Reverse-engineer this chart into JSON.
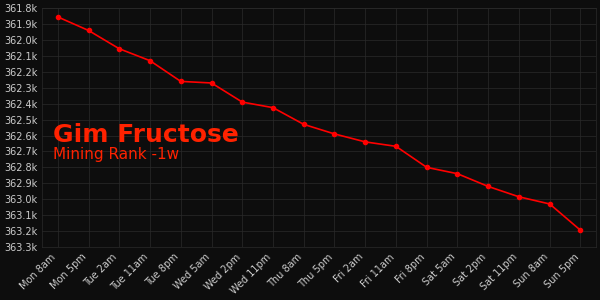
{
  "title": "Gim Fructose",
  "subtitle": "Mining Rank -1w",
  "background_color": "#0d0d0d",
  "plot_bg_color": "#0d0d0d",
  "grid_color": "#2a2a2a",
  "line_color": "#ff0000",
  "marker_color": "#ff0000",
  "text_color": "#cccccc",
  "title_color": "#ff2200",
  "x_labels": [
    "Mon 8am",
    "Mon 5pm",
    "Tue 2am",
    "Tue 11am",
    "Tue 8pm",
    "Wed 5am",
    "Wed 2pm",
    "Wed 11pm",
    "Thu 8am",
    "Thu 5pm",
    "Fri 2am",
    "Fri 11am",
    "Fri 8pm",
    "Sat 5am",
    "Sat 2pm",
    "Sat 11pm",
    "Sun 8am",
    "Sun 5pm"
  ],
  "y_values": [
    361855,
    361940,
    362055,
    362130,
    362260,
    362270,
    362390,
    362425,
    362530,
    362590,
    362640,
    362668,
    362800,
    362840,
    362920,
    362985,
    363030,
    363195
  ],
  "ylim_min": 361800,
  "ylim_max": 363300,
  "y_tick_step": 100,
  "title_fontsize": 18,
  "subtitle_fontsize": 11,
  "tick_fontsize": 7
}
